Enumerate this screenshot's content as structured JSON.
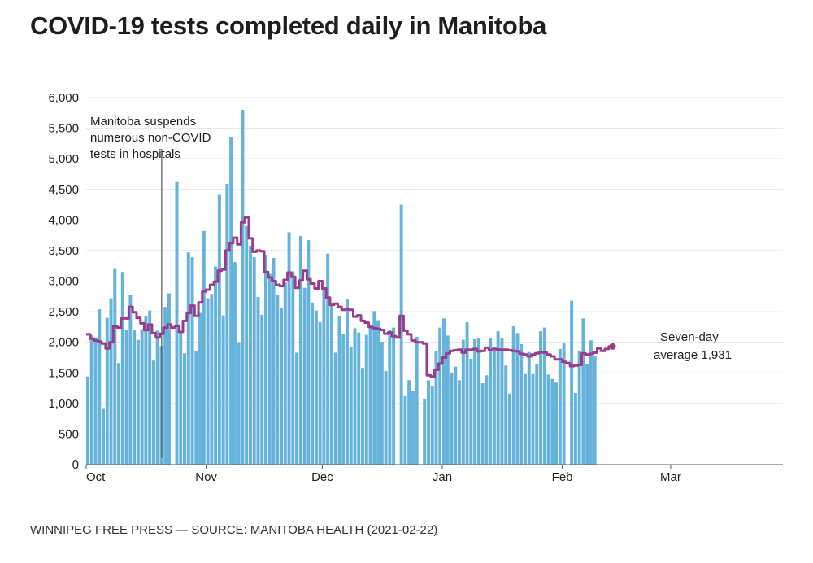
{
  "title": "COVID-19 tests completed daily in Manitoba",
  "footer": "WINNIPEG FREE PRESS — SOURCE: MANITOBA HEALTH (2021-02-22)",
  "colors": {
    "bar": "#65b2db",
    "line": "#9b3b8c",
    "grid": "#e4e4e4",
    "text": "#222222"
  },
  "chart_data": {
    "type": "bar",
    "title": "COVID-19 tests completed daily in Manitoba",
    "xlabel": "",
    "ylabel": "",
    "ylim": [
      0,
      6000
    ],
    "y_ticks": [
      0,
      500,
      1000,
      1500,
      2000,
      2500,
      3000,
      3500,
      4000,
      4500,
      5000,
      5500,
      6000
    ],
    "y_tick_labels": [
      "0",
      "500",
      "1,000",
      "1,500",
      "2,000",
      "2,500",
      "3,000",
      "3,500",
      "4,000",
      "4,500",
      "5,000",
      "5,500",
      "6,000"
    ],
    "x_ticks": [
      {
        "day": 0,
        "label": "Oct"
      },
      {
        "day": 31,
        "label": "Nov"
      },
      {
        "day": 61,
        "label": "Dec"
      },
      {
        "day": 92,
        "label": "Jan"
      },
      {
        "day": 123,
        "label": "Feb"
      },
      {
        "day": 151,
        "label": "Mar"
      }
    ],
    "x_start": "2020-10-01",
    "x_range_days": [
      0,
      180
    ],
    "series": [
      {
        "name": "Daily tests",
        "type": "bar",
        "values": [
          1440,
          2120,
          2080,
          2540,
          910,
          2400,
          2720,
          3200,
          1660,
          3150,
          2200,
          2770,
          2200,
          2040,
          2210,
          2420,
          2520,
          1700,
          2190,
          1940,
          2580,
          2800,
          0,
          4620,
          2160,
          1820,
          3470,
          3390,
          1860,
          2480,
          3820,
          2720,
          2790,
          3240,
          4410,
          2440,
          4590,
          5360,
          3310,
          2000,
          5800,
          3900,
          3580,
          3390,
          2740,
          2450,
          3430,
          3120,
          3380,
          2780,
          2560,
          2980,
          3800,
          3160,
          1830,
          3740,
          2890,
          3670,
          2650,
          2520,
          2330,
          2860,
          3450,
          2630,
          1830,
          2430,
          2140,
          2700,
          1920,
          2230,
          2160,
          1580,
          2120,
          2290,
          2510,
          2360,
          2010,
          1530,
          2210,
          2240,
          0,
          4250,
          1120,
          1380,
          1210,
          2090,
          0,
          1080,
          1380,
          1290,
          1860,
          2240,
          2390,
          2110,
          1490,
          1600,
          1380,
          2040,
          2330,
          1730,
          2050,
          2060,
          1330,
          1460,
          2060,
          1920,
          2180,
          2070,
          1620,
          1160,
          2260,
          2150,
          1970,
          1480,
          1840,
          1480,
          1640,
          2180,
          2240,
          1470,
          1400,
          1340,
          1890,
          1980,
          0,
          2680,
          1170,
          1860,
          2390,
          1640,
          2030,
          1780
        ],
        "gaps_note": "value 0 marks days with no data"
      },
      {
        "name": "Seven-day average",
        "type": "line",
        "values": [
          2130,
          2060,
          2030,
          2010,
          1980,
          1900,
          2000,
          2260,
          2240,
          2390,
          2390,
          2580,
          2490,
          2400,
          2310,
          2200,
          2290,
          2150,
          2080,
          2140,
          2240,
          2290,
          2240,
          2270,
          2170,
          2350,
          2480,
          2600,
          2430,
          2650,
          2830,
          2860,
          2940,
          2990,
          3170,
          3190,
          3500,
          3620,
          3710,
          3600,
          3960,
          4040,
          3700,
          3480,
          3500,
          3490,
          3150,
          3060,
          3000,
          2940,
          2920,
          3020,
          3140,
          3070,
          2890,
          3010,
          3170,
          3030,
          2960,
          2880,
          3000,
          2880,
          2730,
          2610,
          2630,
          2580,
          2530,
          2540,
          2530,
          2420,
          2440,
          2350,
          2320,
          2250,
          2230,
          2220,
          2200,
          2140,
          2160,
          2100,
          2080,
          2430,
          2190,
          2130,
          2030,
          2000,
          2000,
          1980,
          1460,
          1440,
          1550,
          1650,
          1750,
          1820,
          1860,
          1870,
          1880,
          1830,
          1880,
          1880,
          1890,
          1850,
          1860,
          1910,
          1870,
          1890,
          1880,
          1880,
          1880,
          1870,
          1860,
          1850,
          1810,
          1800,
          1770,
          1800,
          1820,
          1840,
          1830,
          1800,
          1770,
          1720,
          1720,
          1680,
          1660,
          1610,
          1620,
          1630,
          1820,
          1800,
          1810,
          1830,
          1900,
          1860,
          1890,
          1931
        ]
      }
    ],
    "annotations": [
      {
        "text_lines": [
          "Manitoba suspends",
          "numerous non-COVID",
          "tests in hospitals"
        ],
        "day": 19.5
      },
      {
        "text_lines": [
          "Seven-day",
          "average 1,931"
        ],
        "value": 1931,
        "day": 135
      }
    ]
  }
}
